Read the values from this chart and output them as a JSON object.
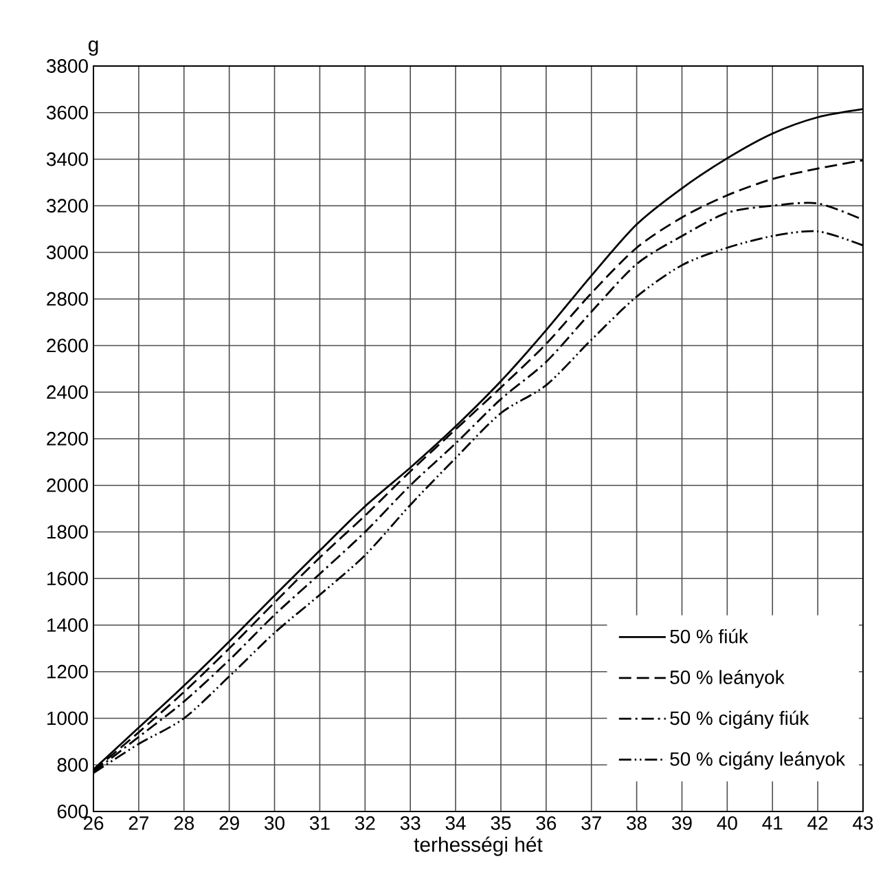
{
  "chart_data": {
    "type": "line",
    "xlabel": "terhességi hét",
    "ylabel": "g",
    "x": [
      26,
      27,
      28,
      29,
      30,
      31,
      32,
      33,
      34,
      35,
      36,
      37,
      38,
      39,
      40,
      41,
      42,
      43
    ],
    "series": [
      {
        "name": "50 % fiúk",
        "color": "#000000",
        "line_style": "solid",
        "values": [
          780,
          960,
          1140,
          1330,
          1527,
          1720,
          1910,
          2076,
          2253,
          2447,
          2666,
          2900,
          3120,
          3275,
          3404,
          3510,
          3580,
          3615
        ]
      },
      {
        "name": "50 % leányok",
        "color": "#000000",
        "line_style": "dashed",
        "values": [
          775,
          940,
          1113,
          1300,
          1497,
          1690,
          1870,
          2060,
          2240,
          2420,
          2607,
          2825,
          3020,
          3150,
          3245,
          3315,
          3360,
          3395
        ]
      },
      {
        "name": "50 % cigány fiúk",
        "color": "#000000",
        "line_style": "dashdot",
        "values": [
          770,
          920,
          1072,
          1250,
          1444,
          1620,
          1800,
          2000,
          2180,
          2370,
          2530,
          2745,
          2950,
          3070,
          3170,
          3200,
          3210,
          3140
        ]
      },
      {
        "name": "50 % cigány leányok",
        "color": "#000000",
        "line_style": "dashdotdot",
        "values": [
          765,
          890,
          1000,
          1180,
          1367,
          1530,
          1700,
          1916,
          2117,
          2310,
          2430,
          2625,
          2810,
          2945,
          3020,
          3070,
          3090,
          3030
        ]
      }
    ],
    "xlim": [
      26,
      43
    ],
    "ylim": [
      600,
      3800
    ],
    "xticks": [
      26,
      27,
      28,
      29,
      30,
      31,
      32,
      33,
      34,
      35,
      36,
      37,
      38,
      39,
      40,
      41,
      42,
      43
    ],
    "yticks": [
      600,
      800,
      1000,
      1200,
      1400,
      1600,
      1800,
      2000,
      2200,
      2400,
      2600,
      2800,
      3000,
      3200,
      3400,
      3600,
      3800
    ],
    "grid": true,
    "legend": "bottom right",
    "marker": "none"
  }
}
